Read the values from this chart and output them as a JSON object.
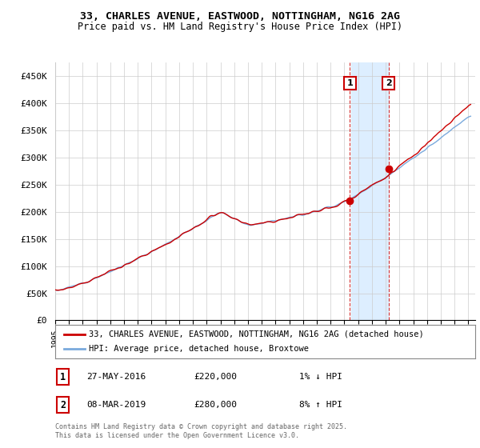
{
  "title_line1": "33, CHARLES AVENUE, EASTWOOD, NOTTINGHAM, NG16 2AG",
  "title_line2": "Price paid vs. HM Land Registry's House Price Index (HPI)",
  "legend_label1": "33, CHARLES AVENUE, EASTWOOD, NOTTINGHAM, NG16 2AG (detached house)",
  "legend_label2": "HPI: Average price, detached house, Broxtowe",
  "annotation1": {
    "num": "1",
    "date": "27-MAY-2016",
    "price": "£220,000",
    "change": "1% ↓ HPI"
  },
  "annotation2": {
    "num": "2",
    "date": "08-MAR-2019",
    "price": "£280,000",
    "change": "8% ↑ HPI"
  },
  "footer": "Contains HM Land Registry data © Crown copyright and database right 2025.\nThis data is licensed under the Open Government Licence v3.0.",
  "line1_color": "#cc0000",
  "line2_color": "#7aaadd",
  "highlight_color": "#ddeeff",
  "annotation_box_color": "#cc0000",
  "ann1_year": 2016.4,
  "ann2_year": 2019.2,
  "ann1_price": 220000,
  "ann2_price": 280000,
  "ylim": [
    0,
    475000
  ],
  "yticks": [
    0,
    50000,
    100000,
    150000,
    200000,
    250000,
    300000,
    350000,
    400000,
    450000
  ],
  "ytick_labels": [
    "£0",
    "£50K",
    "£100K",
    "£150K",
    "£200K",
    "£250K",
    "£300K",
    "£350K",
    "£400K",
    "£450K"
  ]
}
